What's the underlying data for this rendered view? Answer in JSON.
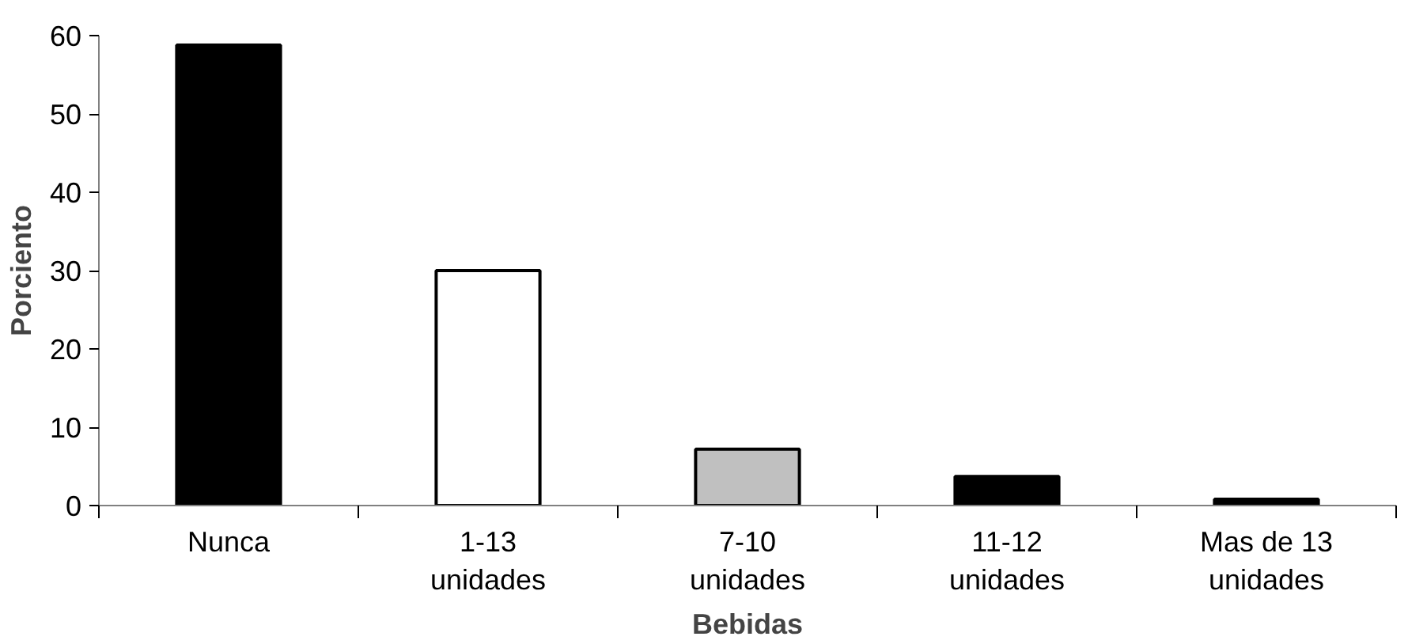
{
  "chart_data": {
    "type": "bar",
    "xlabel": "Bebidas",
    "ylabel": "Porciento",
    "categories": [
      "Nunca",
      "1-13\nunidades",
      "7-10\nunidades",
      "11-12\nunidades",
      "Mas de 13\nunidades"
    ],
    "values": [
      58.8,
      30,
      7.2,
      3.7,
      0.8
    ],
    "colors": [
      "#000000",
      "#ffffff",
      "#c0c0c0",
      "#000000",
      "#000000"
    ],
    "ylim": [
      0,
      60
    ],
    "yticks": [
      0,
      10,
      20,
      30,
      40,
      50,
      60
    ],
    "grid": false
  }
}
